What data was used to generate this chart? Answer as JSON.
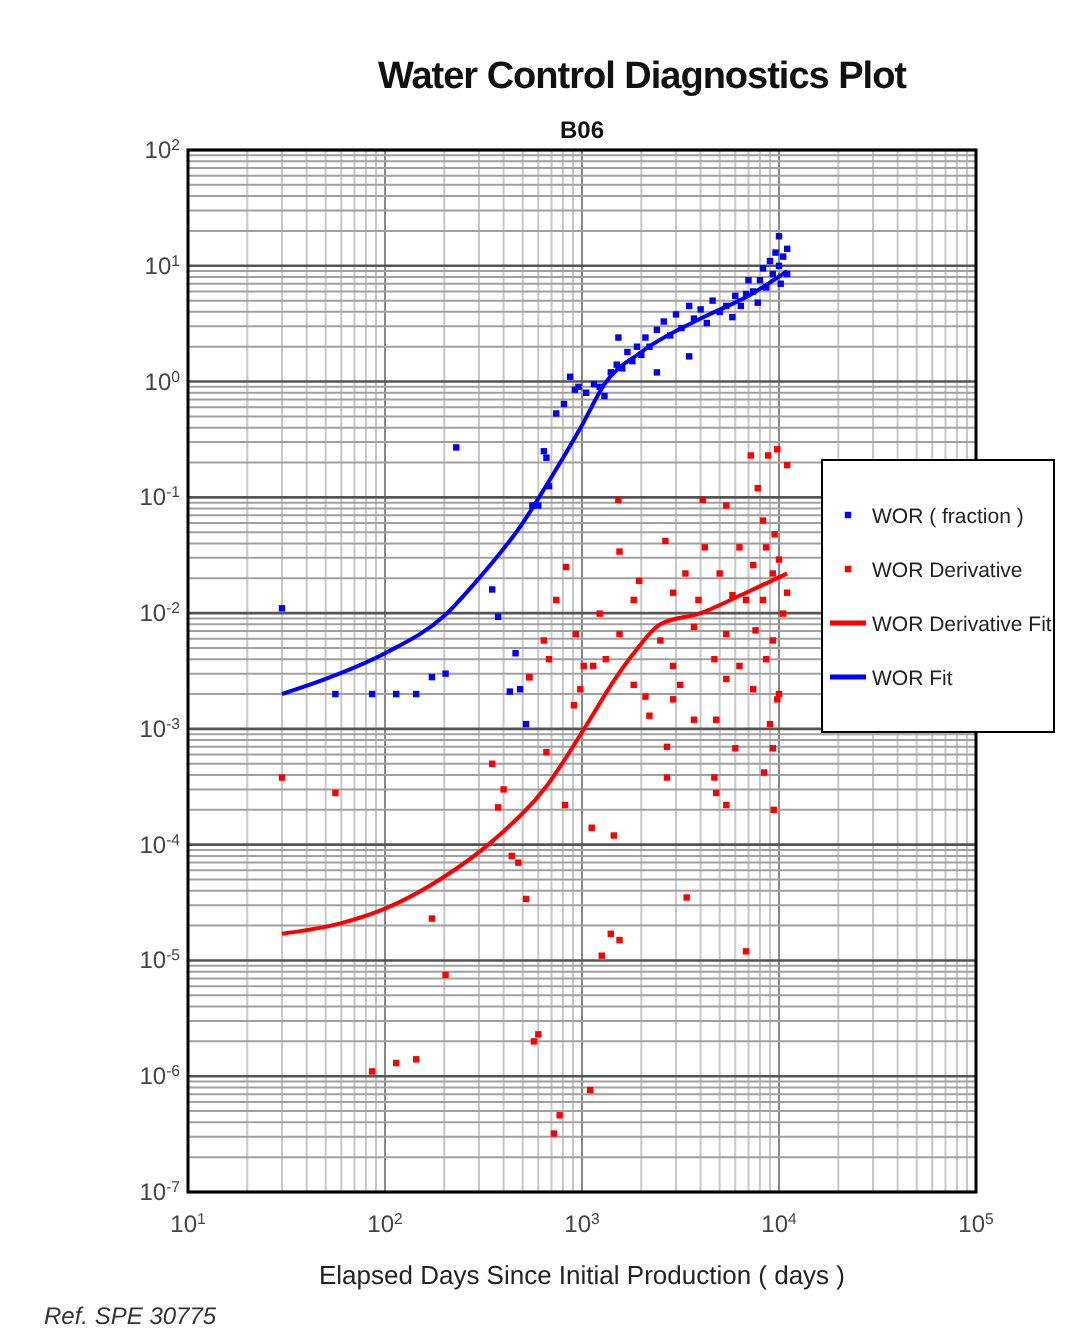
{
  "chart_data": {
    "type": "scatter",
    "title": "Water Control Diagnostics Plot",
    "subtitle": "B06",
    "xlabel": "Elapsed Days Since Initial Production ( days )",
    "annotations": [
      "Ref. SPE 30775"
    ],
    "log": "xy",
    "grid": true,
    "legend": "right",
    "marker": "square",
    "xlim": [
      10,
      100000
    ],
    "ylim": [
      1e-07,
      100
    ],
    "xticks": [
      {
        "value": 10,
        "label": "10$^{1}$"
      },
      {
        "value": 100,
        "label": "10$^{2}$"
      },
      {
        "value": 1000,
        "label": "10$^{3}$"
      },
      {
        "value": 10000,
        "label": "10$^{4}$"
      },
      {
        "value": 100000,
        "label": "10$^{5}$"
      }
    ],
    "yticks": [
      {
        "value": 1e-07,
        "label": "10$^{-7}$"
      },
      {
        "value": 1e-06,
        "label": "10$^{-6}$"
      },
      {
        "value": 1e-05,
        "label": "10$^{-5}$"
      },
      {
        "value": 0.0001,
        "label": "10$^{-4}$"
      },
      {
        "value": 0.001,
        "label": "10$^{-3}$"
      },
      {
        "value": 0.01,
        "label": "10$^{-2}$"
      },
      {
        "value": 0.1,
        "label": "10$^{-1}$"
      },
      {
        "value": 1,
        "label": "10$^{0}$"
      },
      {
        "value": 10,
        "label": "10$^{1}$"
      },
      {
        "value": 100,
        "label": "10$^{2}$"
      }
    ],
    "series": [
      {
        "name": "WOR ( fraction )",
        "color": "#0000ff",
        "x": [
          30,
          56,
          86,
          114,
          144,
          173,
          203,
          230,
          350,
          375,
          430,
          460,
          485,
          520,
          560,
          600,
          640,
          660,
          680,
          740,
          810,
          870,
          920,
          960,
          1050,
          1150,
          1230,
          1300,
          1400,
          1500,
          1530,
          1600,
          1700,
          1800,
          1900,
          2000,
          2100,
          2200,
          2400,
          2400,
          2600,
          2800,
          3000,
          3200,
          3500,
          3500,
          3700,
          4000,
          4300,
          4600,
          5000,
          5400,
          5800,
          6000,
          6400,
          6800,
          7000,
          7400,
          7800,
          8000,
          8300,
          8600,
          9000,
          9300,
          9600,
          10000,
          10000,
          10500,
          11000,
          11000,
          10200
        ],
        "values": [
          0.011,
          0.002,
          0.002,
          0.002,
          0.002,
          0.0028,
          0.003,
          0.27,
          0.016,
          0.0093,
          0.0021,
          0.0045,
          0.0022,
          0.0011,
          0.085,
          0.085,
          0.25,
          0.22,
          0.125,
          0.53,
          0.64,
          1.1,
          0.85,
          0.9,
          0.8,
          0.95,
          0.9,
          0.75,
          1.2,
          1.4,
          2.4,
          1.3,
          1.8,
          1.5,
          2.0,
          1.7,
          2.4,
          2.0,
          1.2,
          2.8,
          3.3,
          2.5,
          3.8,
          2.9,
          1.65,
          4.5,
          3.5,
          4.2,
          3.2,
          5.0,
          4.0,
          4.5,
          3.6,
          5.5,
          4.5,
          5.7,
          7.5,
          6.0,
          4.8,
          7.5,
          9.5,
          6.5,
          11,
          8.5,
          13,
          10,
          18,
          12,
          8.5,
          14,
          7
        ]
      },
      {
        "name": "WOR Derivative",
        "color": "#ff0000",
        "x": [
          30,
          56,
          86,
          114,
          144,
          173,
          203,
          350,
          375,
          400,
          440,
          475,
          520,
          540,
          570,
          600,
          660,
          720,
          770,
          820,
          910,
          980,
          1120,
          1100,
          1260,
          1400,
          1450,
          1550,
          2100,
          2200,
          2700,
          2700,
          3400,
          2900,
          3700,
          4700,
          4800,
          4800,
          5400,
          6000,
          6800,
          8400,
          9000,
          9300,
          9400,
          9800,
          1530,
          7200,
          8800,
          9800,
          11000,
          7800,
          4100,
          5400,
          1550,
          830,
          2650,
          4200,
          6300,
          8300,
          9500,
          1950,
          3350,
          5000,
          7400,
          10000,
          740,
          1830,
          1230,
          2900,
          3900,
          5800,
          8300,
          11000,
          640,
          930,
          1550,
          2500,
          3700,
          5400,
          7600,
          9300,
          680,
          1020,
          1320,
          2900,
          4700,
          6300,
          8600,
          540,
          1830,
          3150,
          5400,
          7400,
          10000,
          1140,
          8600,
          9300,
          10500,
          6800
        ],
        "values": [
          0.00038,
          0.00028,
          1.1e-06,
          1.3e-06,
          1.4e-06,
          2.3e-05,
          7.5e-06,
          0.0005,
          0.00021,
          0.0003,
          8e-05,
          7e-05,
          3.4e-05,
          0.0028,
          2e-06,
          2.3e-06,
          0.00063,
          3.2e-07,
          4.6e-07,
          0.00022,
          0.0016,
          0.0022,
          0.00014,
          7.6e-07,
          1.1e-05,
          1.7e-05,
          0.00012,
          1.5e-05,
          0.0019,
          0.0013,
          0.0007,
          0.00038,
          3.5e-05,
          0.0018,
          0.0012,
          0.00038,
          0.00028,
          0.0012,
          0.00022,
          0.00068,
          1.2e-05,
          0.00042,
          0.0011,
          0.00068,
          0.0002,
          0.0018,
          0.095,
          0.23,
          0.23,
          0.26,
          0.19,
          0.12,
          0.095,
          0.085,
          0.034,
          0.025,
          0.042,
          0.037,
          0.037,
          0.063,
          0.048,
          0.019,
          0.022,
          0.022,
          0.026,
          0.029,
          0.013,
          0.013,
          0.0099,
          0.015,
          0.013,
          0.0143,
          0.013,
          0.015,
          0.0058,
          0.0066,
          0.0066,
          0.0058,
          0.0076,
          0.0066,
          0.0071,
          0.0058,
          0.004,
          0.0035,
          0.004,
          0.0035,
          0.004,
          0.0035,
          0.004,
          0.0028,
          0.0024,
          0.0024,
          0.0027,
          0.0022,
          0.002,
          0.0035,
          0.037,
          0.022,
          0.0099,
          0.013
        ]
      },
      {
        "name": "WOR Derivative Fit",
        "type": "line",
        "marker": "none",
        "color": "#ff0000",
        "x": [
          30,
          60,
          100,
          190,
          357,
          660,
          1050,
          1450,
          1830,
          2500,
          4000,
          6800,
          11000
        ],
        "values": [
          1.7e-05,
          2.1e-05,
          2.8e-05,
          5e-05,
          0.00011,
          0.00032,
          0.00107,
          0.0026,
          0.0045,
          0.008,
          0.01,
          0.015,
          0.022
        ]
      },
      {
        "name": "WOR Fit",
        "type": "line",
        "marker": "none",
        "color": "#0000ff",
        "x": [
          30,
          50,
          100,
          200,
          300,
          500,
          700,
          1000,
          1300,
          2000,
          4000,
          7000,
          11000
        ],
        "values": [
          0.002,
          0.0027,
          0.0045,
          0.0095,
          0.02,
          0.06,
          0.15,
          0.42,
          0.95,
          1.8,
          3.5,
          5.5,
          9
        ]
      }
    ]
  }
}
